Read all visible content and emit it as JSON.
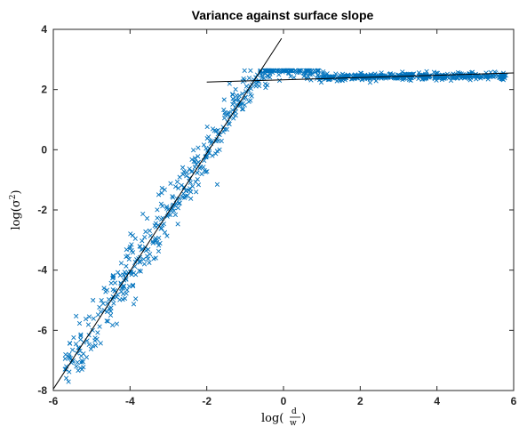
{
  "chart_data": {
    "type": "scatter",
    "title": "Variance against surface slope",
    "xlabel": "log(d/w)",
    "ylabel": "log(σ²)",
    "xlim": [
      -6,
      6
    ],
    "ylim": [
      -8,
      4
    ],
    "x_ticks": [
      -6,
      -4,
      -2,
      0,
      2,
      4,
      6
    ],
    "y_ticks": [
      -8,
      -6,
      -4,
      -2,
      0,
      2,
      4
    ],
    "grid": false,
    "marker": "x",
    "marker_color": "#0072BD",
    "line_color": "#000000",
    "fit_lines": [
      {
        "x": [
          -6.0,
          -0.05
        ],
        "y": [
          -7.95,
          3.7
        ]
      },
      {
        "x": [
          -2.0,
          6.0
        ],
        "y": [
          2.25,
          2.55
        ]
      }
    ],
    "curve_model": {
      "description": "points scattered around a saturating curve",
      "plateau": 2.45,
      "knee_x": 0.0
    },
    "seed": 7
  }
}
